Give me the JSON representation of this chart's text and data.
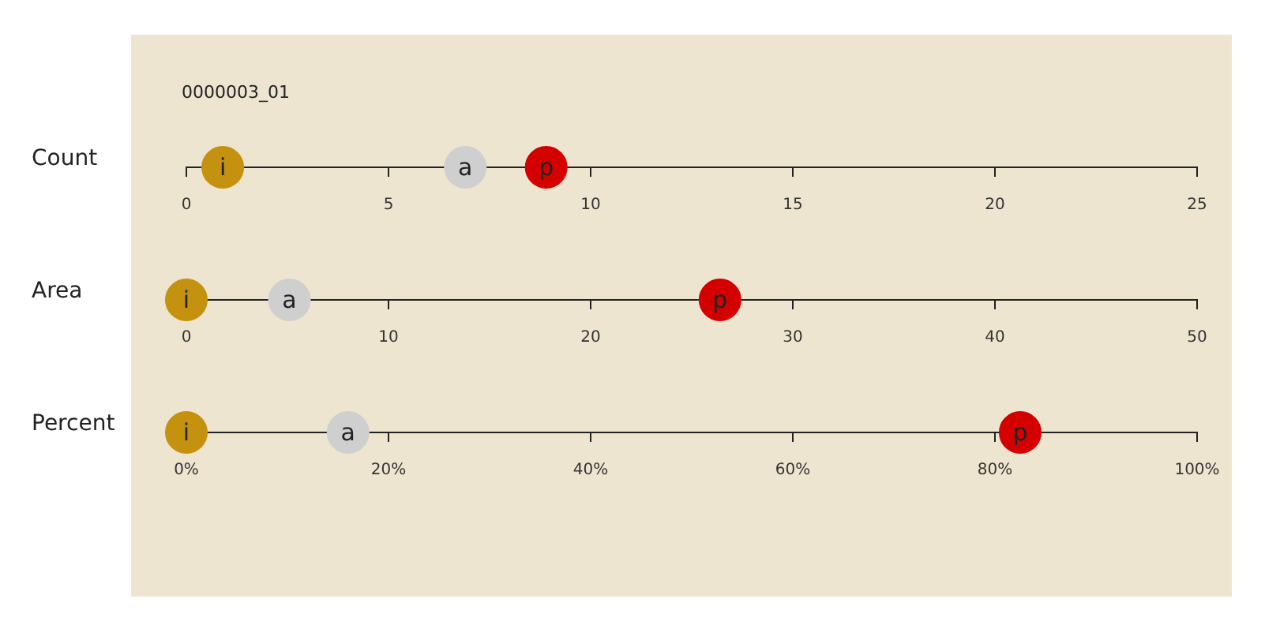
{
  "chart_data": [
    {
      "type": "scatter",
      "title": "0000003_01",
      "orientation": "horizontal",
      "categories": [
        "Count"
      ],
      "xlim": [
        0,
        25
      ],
      "xticks": [
        0,
        5,
        10,
        15,
        20,
        25
      ],
      "grid": false,
      "legend": false,
      "marker": "circle",
      "series": [
        {
          "name": "i",
          "color": "#c4920f",
          "values": [
            0.9
          ]
        },
        {
          "name": "a",
          "color": "#cfcfcf",
          "values": [
            6.9
          ]
        },
        {
          "name": "p",
          "color": "#d40000",
          "values": [
            8.9
          ]
        }
      ]
    },
    {
      "type": "scatter",
      "orientation": "horizontal",
      "categories": [
        "Area"
      ],
      "xlim": [
        0,
        50
      ],
      "xticks": [
        0,
        10,
        20,
        30,
        40,
        50
      ],
      "grid": false,
      "legend": false,
      "marker": "circle",
      "series": [
        {
          "name": "i",
          "color": "#c4920f",
          "values": [
            0
          ]
        },
        {
          "name": "a",
          "color": "#cfcfcf",
          "values": [
            5.1
          ]
        },
        {
          "name": "p",
          "color": "#d40000",
          "values": [
            26.4
          ]
        }
      ]
    },
    {
      "type": "scatter",
      "orientation": "horizontal",
      "categories": [
        "Percent"
      ],
      "xlim": [
        0,
        100
      ],
      "xticks": [
        {
          "value": 0,
          "label": "0%"
        },
        {
          "value": 20,
          "label": "20%"
        },
        {
          "value": 40,
          "label": "40%"
        },
        {
          "value": 60,
          "label": "60%"
        },
        {
          "value": 80,
          "label": "80%"
        },
        {
          "value": 100,
          "label": "100%"
        }
      ],
      "grid": false,
      "legend": false,
      "marker": "circle",
      "series": [
        {
          "name": "i",
          "color": "#c4920f",
          "values": [
            0
          ]
        },
        {
          "name": "a",
          "color": "#cfcfcf",
          "values": [
            16
          ]
        },
        {
          "name": "p",
          "color": "#d40000",
          "values": [
            82.5
          ]
        }
      ]
    }
  ]
}
